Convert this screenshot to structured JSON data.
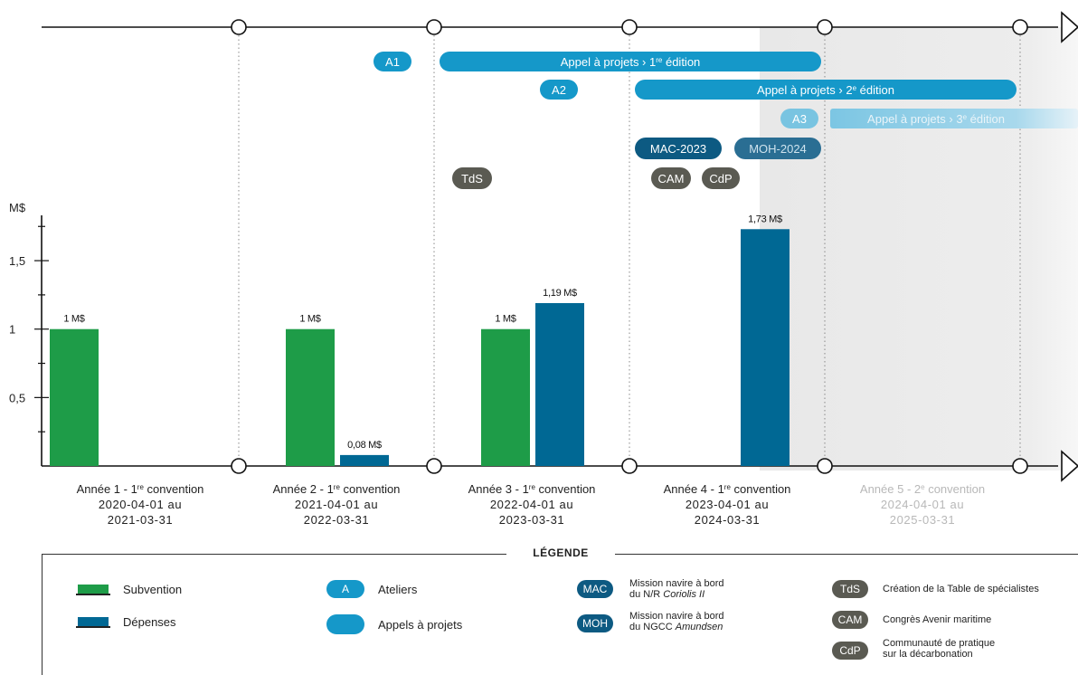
{
  "chart_data": {
    "type": "bar",
    "ylabel": "M$",
    "ylim": [
      0,
      1.95
    ],
    "yticks": [
      "0,5",
      "1",
      "1,5"
    ],
    "ytick_values": [
      0.5,
      1,
      1.5
    ],
    "categories": [
      {
        "l1": "Année 1 - 1",
        "sup": "re",
        "l1b": " convention",
        "l2": "2020-04-01 au",
        "l3": "2021-03-31",
        "faded": false
      },
      {
        "l1": "Année 2 - 1",
        "sup": "re",
        "l1b": " convention",
        "l2": "2021-04-01 au",
        "l3": "2022-03-31",
        "faded": false
      },
      {
        "l1": "Année 3 - 1",
        "sup": "re",
        "l1b": " convention",
        "l2": "2022-04-01 au",
        "l3": "2023-03-31",
        "faded": false
      },
      {
        "l1": "Année 4 - 1",
        "sup": "re",
        "l1b": " convention",
        "l2": "2023-04-01 au",
        "l3": "2024-03-31",
        "faded": false
      },
      {
        "l1": "Année 5 - 2",
        "sup": "e",
        "l1b": " convention",
        "l2": "2024-04-01 au",
        "l3": "2025-03-31",
        "faded": true
      }
    ],
    "series": [
      {
        "name": "Subvention",
        "color": "#1e9c48",
        "values": [
          1,
          1,
          1,
          null,
          null
        ],
        "labels": [
          "1 M$",
          "1 M$",
          "1 M$",
          "",
          ""
        ]
      },
      {
        "name": "Dépenses",
        "color": "#006894",
        "values": [
          null,
          0.08,
          1.19,
          1.73,
          null
        ],
        "labels": [
          "",
          "0,08 M$",
          "1,19 M$",
          "1,73 M$",
          ""
        ]
      }
    ],
    "grid": false,
    "legend": "bottom"
  },
  "timeline": {
    "events": [
      {
        "tag": "A1",
        "label": "Appel à projets › 1",
        "sup": "re",
        "label2": " édition",
        "tag_year": 1,
        "bar_from": 2,
        "bar_to": 4,
        "color": "#1598c9",
        "row": 0,
        "faded": false
      },
      {
        "tag": "A2",
        "label": "Appel à projets › 2",
        "sup": "e",
        "label2": " édition",
        "tag_year": 2,
        "bar_from": 3,
        "bar_to": 5,
        "color": "#1598c9",
        "row": 1,
        "faded": false
      },
      {
        "tag": "A3",
        "label": "Appel à projets › 3",
        "sup": "e",
        "label2": " édition",
        "tag_year": 3,
        "bar_from": 4,
        "bar_to": 5,
        "color": "#6dc0e0",
        "row": 2,
        "faded": true
      }
    ],
    "missions": [
      {
        "label": "MAC-2023",
        "color": "#0d5a82",
        "text_color": "#ffffff"
      },
      {
        "label": "MOH-2024",
        "color": "#2a6e93",
        "text_color": "#cfe3ee"
      }
    ],
    "milestones": [
      {
        "label": "TdS",
        "color": "#5a5a52"
      },
      {
        "label": "CAM",
        "color": "#5a5a52"
      },
      {
        "label": "CdP",
        "color": "#5a5a52"
      }
    ]
  },
  "legend": {
    "title": "LÉGENDE",
    "subvention": "Subvention",
    "depenses": "Dépenses",
    "ateliers_tag": "A",
    "ateliers": "Ateliers",
    "appels": "Appels à projets",
    "mac_tag": "MAC",
    "mac_line1": "Mission navire à bord",
    "mac_line2_prefix": "du N/R ",
    "mac_line2_italic": "Coriolis II",
    "moh_tag": "MOH",
    "moh_line1": "Mission navire à bord",
    "moh_line2_prefix": "du NGCC ",
    "moh_line2_italic": "Amundsen",
    "tds_tag": "TdS",
    "tds": "Création de la Table de spécialistes",
    "cam_tag": "CAM",
    "cam": "Congrès Avenir maritime",
    "cdp_tag": "CdP",
    "cdp_line1": "Communauté de pratique",
    "cdp_line2": "sur la décarbonation",
    "colors": {
      "green": "#1e9c48",
      "blue": "#006894",
      "sky": "#1598c9",
      "navy": "#0d5a82",
      "gray": "#5a5a52"
    }
  }
}
